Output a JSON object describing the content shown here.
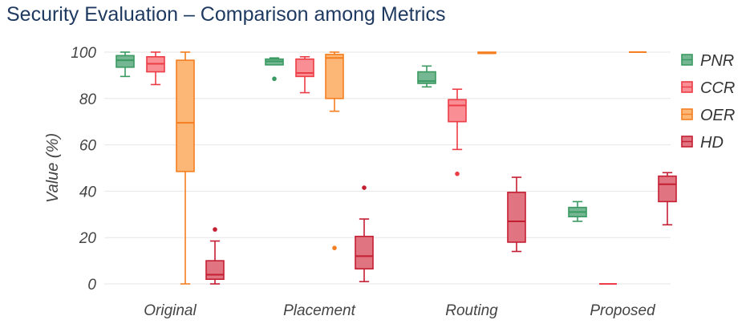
{
  "chart_data": {
    "type": "box",
    "title": "Security Evaluation – Comparison among Metrics",
    "xlabel": "",
    "ylabel": "Value (%)",
    "ylim": [
      0,
      100
    ],
    "yticks": [
      0,
      20,
      40,
      60,
      80,
      100
    ],
    "grid": true,
    "legend_position": "right",
    "categories": [
      "Original",
      "Placement",
      "Routing",
      "Proposed"
    ],
    "series": [
      {
        "name": "PNR",
        "fill": "#74b792",
        "stroke": "#3a9a62",
        "boxes": [
          {
            "min": 89.5,
            "q1": 93.5,
            "median": 96.5,
            "q3": 98.5,
            "max": 100,
            "outliers": []
          },
          {
            "min": 94.5,
            "q1": 94.5,
            "median": 96,
            "q3": 97,
            "max": 97.5,
            "outliers": [
              88.5
            ]
          },
          {
            "min": 85,
            "q1": 86.5,
            "median": 87.5,
            "q3": 91.5,
            "max": 94,
            "outliers": []
          },
          {
            "min": 27,
            "q1": 29,
            "median": 31,
            "q3": 33,
            "max": 35.5,
            "outliers": []
          }
        ]
      },
      {
        "name": "CCR",
        "fill": "#f98f95",
        "stroke": "#ec3c46",
        "boxes": [
          {
            "min": 86,
            "q1": 91.5,
            "median": 95,
            "q3": 98,
            "max": 100,
            "outliers": []
          },
          {
            "min": 82.5,
            "q1": 89.5,
            "median": 91,
            "q3": 97,
            "max": 98,
            "outliers": []
          },
          {
            "min": 58,
            "q1": 70,
            "median": 77,
            "q3": 79.5,
            "max": 84,
            "outliers": [
              47.5
            ]
          },
          {
            "min": 0,
            "q1": 0,
            "median": 0,
            "q3": 0,
            "max": 0,
            "outliers": []
          }
        ]
      },
      {
        "name": "OER",
        "fill": "#fcb777",
        "stroke": "#f47e20",
        "boxes": [
          {
            "min": 0,
            "q1": 48.5,
            "median": 69.5,
            "q3": 96.5,
            "max": 100,
            "outliers": []
          },
          {
            "min": 74.5,
            "q1": 80,
            "median": 97.5,
            "q3": 99,
            "max": 100,
            "outliers": [
              15.5
            ]
          },
          {
            "min": 99.5,
            "q1": 99.5,
            "median": 99.5,
            "q3": 100,
            "max": 100,
            "outliers": []
          },
          {
            "min": 100,
            "q1": 100,
            "median": 100,
            "q3": 100,
            "max": 100,
            "outliers": []
          }
        ]
      },
      {
        "name": "HD",
        "fill": "#e07480",
        "stroke": "#c41e32",
        "boxes": [
          {
            "min": 0,
            "q1": 2,
            "median": 4,
            "q3": 10,
            "max": 18.5,
            "outliers": [
              23.5
            ]
          },
          {
            "min": 1,
            "q1": 6.5,
            "median": 12,
            "q3": 20.5,
            "max": 28,
            "outliers": [
              41.5
            ]
          },
          {
            "min": 14,
            "q1": 18,
            "median": 27,
            "q3": 39.5,
            "max": 46,
            "outliers": []
          },
          {
            "min": 25.5,
            "q1": 35.5,
            "median": 43,
            "q3": 46.5,
            "max": 48,
            "outliers": []
          }
        ]
      }
    ]
  }
}
